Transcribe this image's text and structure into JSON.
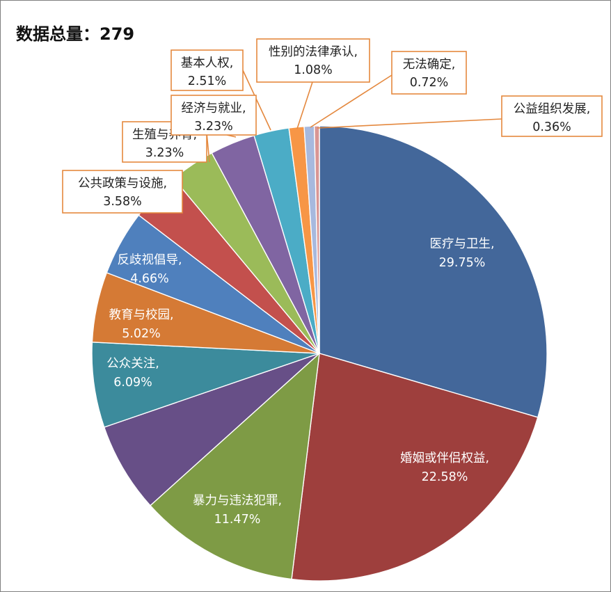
{
  "title": "数据总量：279",
  "chart_data": {
    "type": "pie",
    "total": 279,
    "slices": [
      {
        "name": "医疗与卫生",
        "pct": "29.75%",
        "value": 29.75,
        "color": "#43679a"
      },
      {
        "name": "婚姻或伴侣权益",
        "pct": "22.58%",
        "value": 22.58,
        "color": "#9e3f3d"
      },
      {
        "name": "暴力与违法犯罪",
        "pct": "11.47%",
        "value": 11.47,
        "color": "#7e9b45"
      },
      {
        "name": "",
        "pct": "",
        "value": 6.45,
        "color": "#674f87"
      },
      {
        "name": "公众关注",
        "pct": "6.09%",
        "value": 6.09,
        "color": "#3c8b9c"
      },
      {
        "name": "教育与校园",
        "pct": "5.02%",
        "value": 5.02,
        "color": "#d57a35"
      },
      {
        "name": "反歧视倡导",
        "pct": "4.66%",
        "value": 4.66,
        "color": "#4f80bd"
      },
      {
        "name": "公共政策与设施",
        "pct": "3.58%",
        "value": 3.58,
        "color": "#c3504d"
      },
      {
        "name": "生殖与养育",
        "pct": "3.23%",
        "value": 3.23,
        "color": "#9bbb59"
      },
      {
        "name": "经济与就业",
        "pct": "3.23%",
        "value": 3.23,
        "color": "#8065a2"
      },
      {
        "name": "基本人权",
        "pct": "2.51%",
        "value": 2.51,
        "color": "#4bacc6"
      },
      {
        "name": "性别的法律承认",
        "pct": "1.08%",
        "value": 1.08,
        "color": "#f79646"
      },
      {
        "name": "无法确定",
        "pct": "0.72%",
        "value": 0.72,
        "color": "#a7b9de"
      },
      {
        "name": "公益组织发展",
        "pct": "0.36%",
        "value": 0.36,
        "color": "#d99694"
      }
    ]
  }
}
